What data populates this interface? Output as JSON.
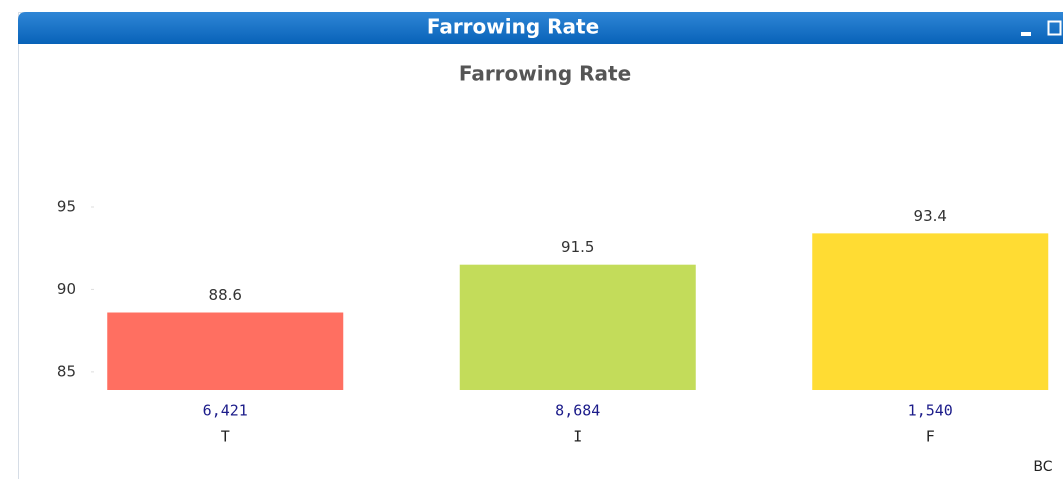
{
  "window": {
    "title": "Farrowing Rate"
  },
  "chart_data": {
    "type": "bar",
    "title": "Farrowing Rate",
    "categories": [
      "T",
      "I",
      "F"
    ],
    "values": [
      88.6,
      91.5,
      93.4
    ],
    "colors": [
      "#ff6f61",
      "#c3dc5a",
      "#ffdc33"
    ],
    "counts": {
      "values": [
        6421,
        8684,
        1540
      ],
      "value_labels": [
        "6,421",
        "8,684",
        "1,540"
      ]
    },
    "ylim": [
      83.9,
      96
    ],
    "yticks": [
      85,
      90,
      95
    ],
    "grid": false,
    "annotation": "BC"
  }
}
